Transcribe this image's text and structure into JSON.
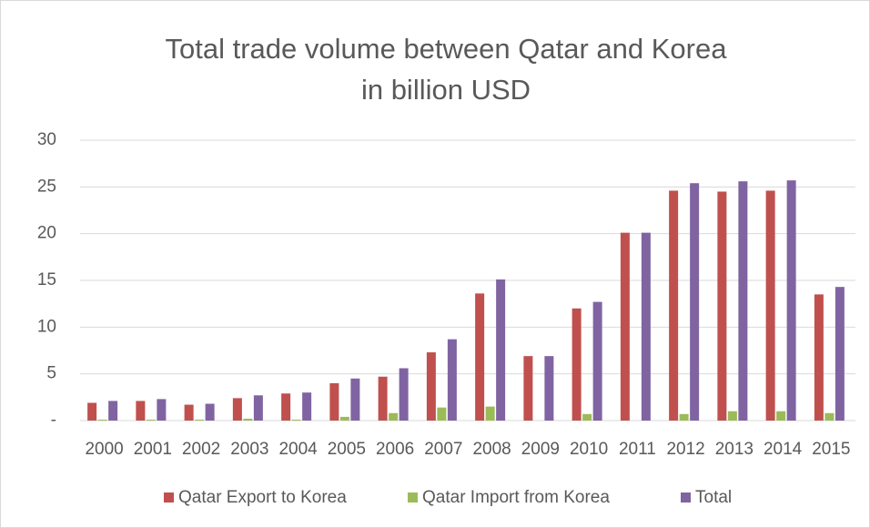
{
  "chart_data": {
    "type": "bar",
    "title": [
      "Total trade volume between Qatar and Korea",
      "in billion USD"
    ],
    "categories": [
      "2000",
      "2001",
      "2002",
      "2003",
      "2004",
      "2005",
      "2006",
      "2007",
      "2008",
      "2009",
      "2010",
      "2011",
      "2012",
      "2013",
      "2014",
      "2015"
    ],
    "series": [
      {
        "name": "Qatar Export to Korea",
        "color": "#c0504d",
        "values": [
          1.9,
          2.1,
          1.7,
          2.4,
          2.9,
          4.0,
          4.7,
          7.3,
          13.6,
          6.9,
          12.0,
          20.1,
          24.6,
          24.5,
          24.6,
          13.5
        ]
      },
      {
        "name": "Qatar Import from Korea",
        "color": "#9bbb59",
        "values": [
          0.1,
          0.1,
          0.1,
          0.2,
          0.1,
          0.4,
          0.8,
          1.4,
          1.5,
          0,
          0.7,
          0,
          0.7,
          1.0,
          1.0,
          0.8
        ]
      },
      {
        "name": "Total",
        "color": "#8064a2",
        "values": [
          2.1,
          2.3,
          1.8,
          2.7,
          3.0,
          4.5,
          5.6,
          8.7,
          15.1,
          6.9,
          12.7,
          20.1,
          25.4,
          25.6,
          25.7,
          14.3
        ]
      }
    ],
    "ylim": [
      0,
      30
    ],
    "yticks": [
      {
        "value": 0,
        "label": "-"
      },
      5,
      10,
      15,
      20,
      25,
      30
    ],
    "grid": true,
    "legend": "bottom"
  }
}
